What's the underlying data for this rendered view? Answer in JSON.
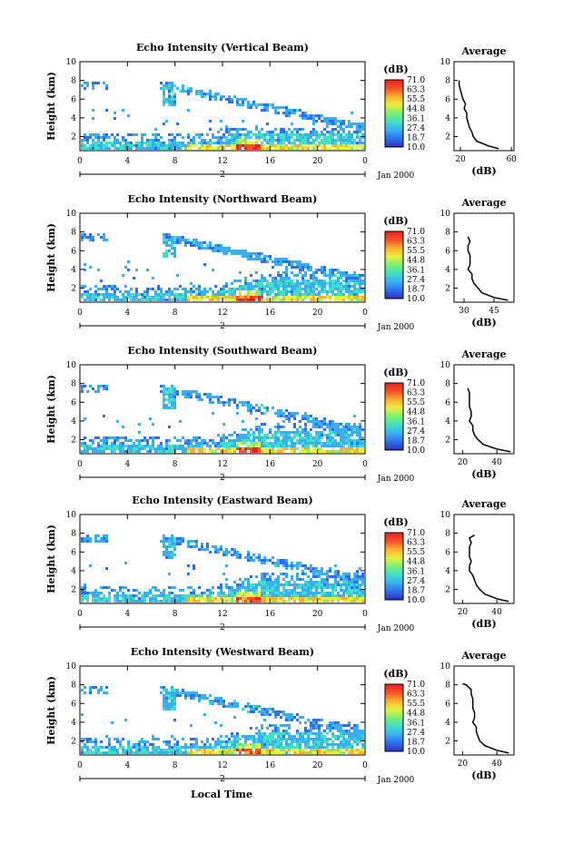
{
  "chart_data": {
    "type": "heatmap",
    "x_axis": {
      "label": "Local Time",
      "range": [
        0,
        24
      ],
      "ticks": [
        "0",
        "4",
        "8",
        "12",
        "16",
        "20",
        "0"
      ],
      "date_label": "Jan 2000",
      "day_marker": "2"
    },
    "y_axis": {
      "label": "Height (km)",
      "range": [
        0.5,
        10
      ],
      "ticks": [
        "2",
        "4",
        "6",
        "8",
        "10"
      ]
    },
    "colorbar": {
      "unit": "(dB)",
      "ticks": [
        "71.0",
        "63.3",
        "55.5",
        "44.8",
        "36.1",
        "27.4",
        "18.7",
        "10.0"
      ],
      "range": [
        10,
        71
      ],
      "colors": [
        "#3030c0",
        "#2f6ef0",
        "#38b0f0",
        "#40e0c8",
        "#7af070",
        "#e8f040",
        "#f8b030",
        "#f85028",
        "#e82020"
      ]
    },
    "average_title": "Average",
    "average_xlabel": "(dB)",
    "panels": [
      {
        "title": "Echo Intensity (Vertical Beam)",
        "avg_xticks": [
          "20",
          "60"
        ],
        "avg_xrange": [
          15,
          62
        ],
        "profile": [
          [
            0.7,
            50
          ],
          [
            1.0,
            42
          ],
          [
            1.5,
            33
          ],
          [
            2.0,
            30
          ],
          [
            2.5,
            29
          ],
          [
            3.0,
            27
          ],
          [
            3.5,
            26
          ],
          [
            4.0,
            25
          ],
          [
            4.5,
            25
          ],
          [
            5.0,
            23
          ],
          [
            5.5,
            24
          ],
          [
            6.0,
            22
          ],
          [
            6.5,
            21
          ],
          [
            7.0,
            20
          ],
          [
            7.5,
            19
          ],
          [
            8.0,
            19
          ]
        ]
      },
      {
        "title": "Echo Intensity (Northward Beam)",
        "avg_xticks": [
          "30",
          "45"
        ],
        "avg_xrange": [
          25,
          55
        ],
        "profile": [
          [
            0.7,
            52
          ],
          [
            1.0,
            45
          ],
          [
            1.5,
            39
          ],
          [
            2.0,
            37
          ],
          [
            2.5,
            35
          ],
          [
            3.0,
            34
          ],
          [
            3.5,
            34
          ],
          [
            4.0,
            32
          ],
          [
            4.5,
            33
          ],
          [
            5.0,
            33
          ],
          [
            5.5,
            33
          ],
          [
            6.0,
            32
          ],
          [
            6.5,
            32
          ],
          [
            7.0,
            33
          ],
          [
            7.5,
            32
          ]
        ]
      },
      {
        "title": "Echo Intensity (Southward Beam)",
        "avg_xticks": [
          "20",
          "40"
        ],
        "avg_xrange": [
          15,
          50
        ],
        "profile": [
          [
            0.7,
            48
          ],
          [
            1.0,
            40
          ],
          [
            1.5,
            32
          ],
          [
            2.0,
            29
          ],
          [
            2.5,
            27
          ],
          [
            3.0,
            26
          ],
          [
            3.5,
            26
          ],
          [
            4.0,
            24
          ],
          [
            4.5,
            25
          ],
          [
            5.0,
            25
          ],
          [
            5.5,
            24
          ],
          [
            6.0,
            24
          ],
          [
            6.5,
            24
          ],
          [
            7.0,
            24
          ],
          [
            7.5,
            23
          ]
        ]
      },
      {
        "title": "Echo Intensity (Eastward Beam)",
        "avg_xticks": [
          "20",
          "40"
        ],
        "avg_xrange": [
          15,
          50
        ],
        "profile": [
          [
            0.7,
            47
          ],
          [
            1.0,
            40
          ],
          [
            1.5,
            33
          ],
          [
            2.0,
            30
          ],
          [
            2.5,
            28
          ],
          [
            3.0,
            27
          ],
          [
            3.5,
            26
          ],
          [
            4.0,
            24
          ],
          [
            4.5,
            24
          ],
          [
            5.0,
            25
          ],
          [
            5.5,
            24
          ],
          [
            6.0,
            24
          ],
          [
            6.5,
            24
          ],
          [
            7.0,
            25
          ],
          [
            7.5,
            24
          ],
          [
            7.8,
            27
          ]
        ]
      },
      {
        "title": "Echo Intensity (Westward Beam)",
        "avg_xticks": [
          "20",
          "40"
        ],
        "avg_xrange": [
          15,
          50
        ],
        "profile": [
          [
            0.7,
            47
          ],
          [
            1.0,
            40
          ],
          [
            1.5,
            33
          ],
          [
            2.0,
            30
          ],
          [
            2.5,
            29
          ],
          [
            3.0,
            28
          ],
          [
            3.5,
            28
          ],
          [
            4.0,
            26
          ],
          [
            4.5,
            27
          ],
          [
            5.0,
            27
          ],
          [
            5.5,
            26
          ],
          [
            6.0,
            26
          ],
          [
            6.5,
            26
          ],
          [
            7.0,
            25
          ],
          [
            7.5,
            25
          ],
          [
            8.0,
            22
          ],
          [
            8.1,
            20
          ]
        ]
      }
    ]
  }
}
